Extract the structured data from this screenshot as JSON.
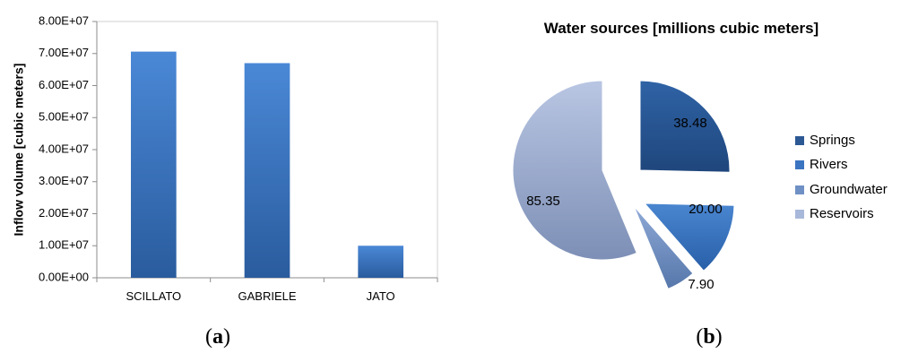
{
  "panels": {
    "a": {
      "label_open": "(",
      "letter": "a",
      "label_close": ")"
    },
    "b": {
      "label_open": "(",
      "letter": "b",
      "label_close": ")"
    }
  },
  "chart_data": [
    {
      "type": "bar",
      "categories": [
        "SCILLATO",
        "GABRIELE",
        "JATO"
      ],
      "values": [
        70600000,
        67000000,
        10000000
      ],
      "ylabel": "Inflow volume [cubic meters]",
      "ylim": [
        0,
        80000000
      ],
      "yticks": [
        0,
        10000000,
        20000000,
        30000000,
        40000000,
        50000000,
        60000000,
        70000000,
        80000000
      ],
      "ytick_labels": [
        "0.00E+00",
        "1.00E+07",
        "2.00E+07",
        "3.00E+07",
        "4.00E+07",
        "5.00E+07",
        "6.00E+07",
        "7.00E+07",
        "8.00E+07"
      ],
      "grid": false,
      "colors": {
        "bar_light": "#4a88d6",
        "bar_dark": "#2a5c9e"
      }
    },
    {
      "type": "pie",
      "title": "Water sources [millions cubic meters]",
      "labels": [
        "Springs",
        "Rivers",
        "Groundwater",
        "Reservoirs"
      ],
      "values": [
        38.48,
        20.0,
        7.9,
        85.35
      ],
      "value_labels": [
        "38.48",
        "20.00",
        "7.90",
        "85.35"
      ],
      "exploded": true,
      "legend": "right",
      "colors": [
        "#2c5894",
        "#3b74c0",
        "#6e90c4",
        "#a8b8da"
      ]
    }
  ]
}
